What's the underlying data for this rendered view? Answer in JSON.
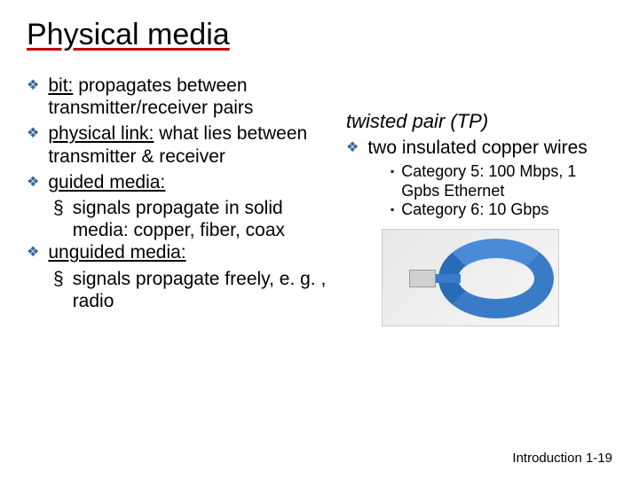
{
  "title": "Physical media",
  "leftBullets": [
    {
      "label": "bit:",
      "text": " propagates between transmitter/receiver pairs"
    },
    {
      "label": "physical link:",
      "text": " what lies between transmitter & receiver"
    },
    {
      "label": "guided media:",
      "text": "",
      "sub": [
        "signals propagate in solid media: copper, fiber, coax"
      ]
    },
    {
      "label": "unguided media:",
      "text": "",
      "sub": [
        "signals propagate freely, e. g. , radio"
      ]
    }
  ],
  "rightHeading": "twisted pair (TP)",
  "rightBullet": "two insulated copper wires",
  "rightSubBullets": [
    "Category 5: 100 Mbps, 1 Gpbs Ethernet",
    "Category 6: 10 Gbps"
  ],
  "footer": {
    "label": "Introduction",
    "page": "1-19"
  },
  "colors": {
    "bulletMarker": "#336699",
    "underline": "#c00000",
    "cable": "#3a7bc8"
  }
}
